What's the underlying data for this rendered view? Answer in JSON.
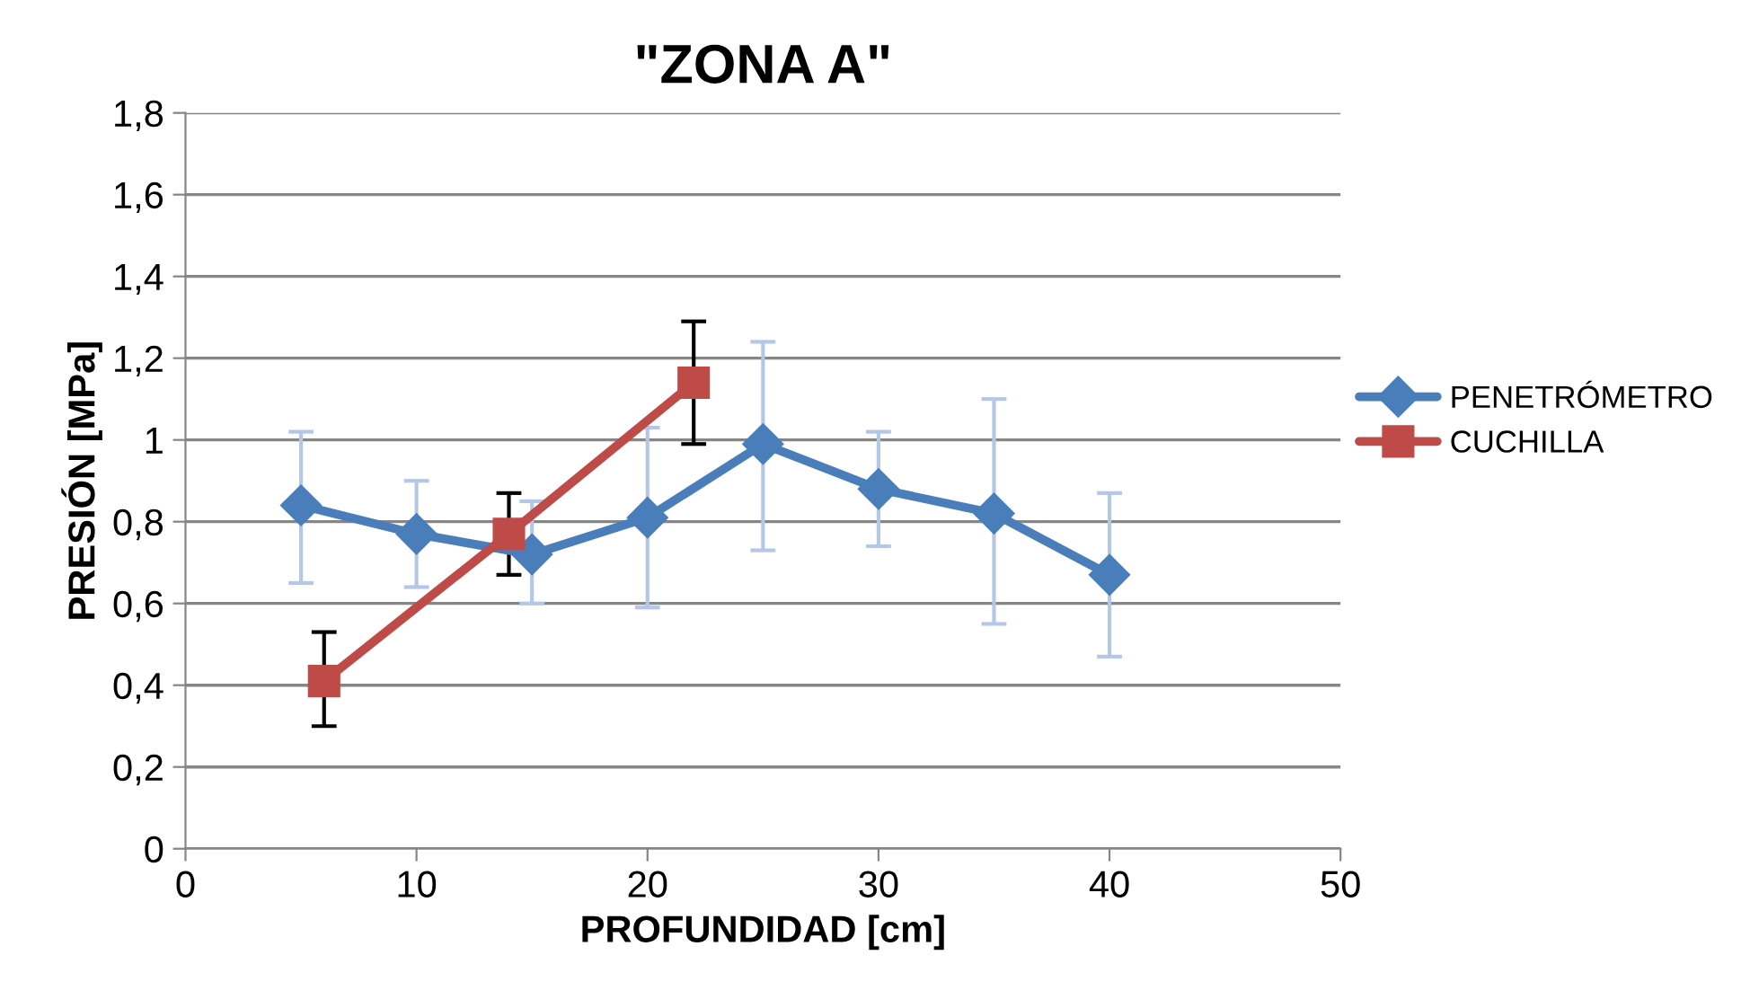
{
  "chart_data": {
    "type": "line",
    "title": "\"ZONA A\"",
    "xlabel": "PROFUNDIDAD [cm]",
    "ylabel": "PRESIÓN [MPa]",
    "series": [
      {
        "name": "PENETRÓMETRO",
        "color": "#4a7ebb",
        "marker": "diamond",
        "x": [
          5,
          10,
          15,
          20,
          25,
          30,
          35,
          40
        ],
        "values": [
          0.84,
          0.77,
          0.72,
          0.81,
          0.99,
          0.88,
          0.82,
          0.67
        ],
        "errors": [
          [
            0.65,
            1.02
          ],
          [
            0.64,
            0.9
          ],
          [
            0.6,
            0.85
          ],
          [
            0.59,
            1.03
          ],
          [
            0.73,
            1.24
          ],
          [
            0.74,
            1.02
          ],
          [
            0.55,
            1.1
          ],
          [
            0.47,
            0.87
          ]
        ]
      },
      {
        "name": "CUCHILLA",
        "color": "#be4b48",
        "marker": "square",
        "x": [
          6,
          14,
          22
        ],
        "values": [
          0.41,
          0.77,
          1.14
        ],
        "errors": [
          [
            0.3,
            0.53
          ],
          [
            0.67,
            0.87
          ],
          [
            0.99,
            1.29
          ]
        ]
      }
    ],
    "xlim": [
      0,
      50
    ],
    "xticks": [
      0,
      10,
      20,
      30,
      40,
      50
    ],
    "ylim": [
      0,
      1.8
    ],
    "yticks": [
      0,
      {
        "value": 0.2,
        "label": "0,2"
      },
      {
        "value": 0.4,
        "label": "0,4"
      },
      {
        "value": 0.6,
        "label": "0,6"
      },
      {
        "value": 0.8,
        "label": "0,8"
      },
      1,
      {
        "value": 1.2,
        "label": "1,2"
      },
      {
        "value": 1.4,
        "label": "1,4"
      },
      {
        "value": 1.6,
        "label": "1,6"
      },
      {
        "value": 1.8,
        "label": "1,8"
      }
    ],
    "grid": "y",
    "legend": "right",
    "line_style": "solid"
  }
}
